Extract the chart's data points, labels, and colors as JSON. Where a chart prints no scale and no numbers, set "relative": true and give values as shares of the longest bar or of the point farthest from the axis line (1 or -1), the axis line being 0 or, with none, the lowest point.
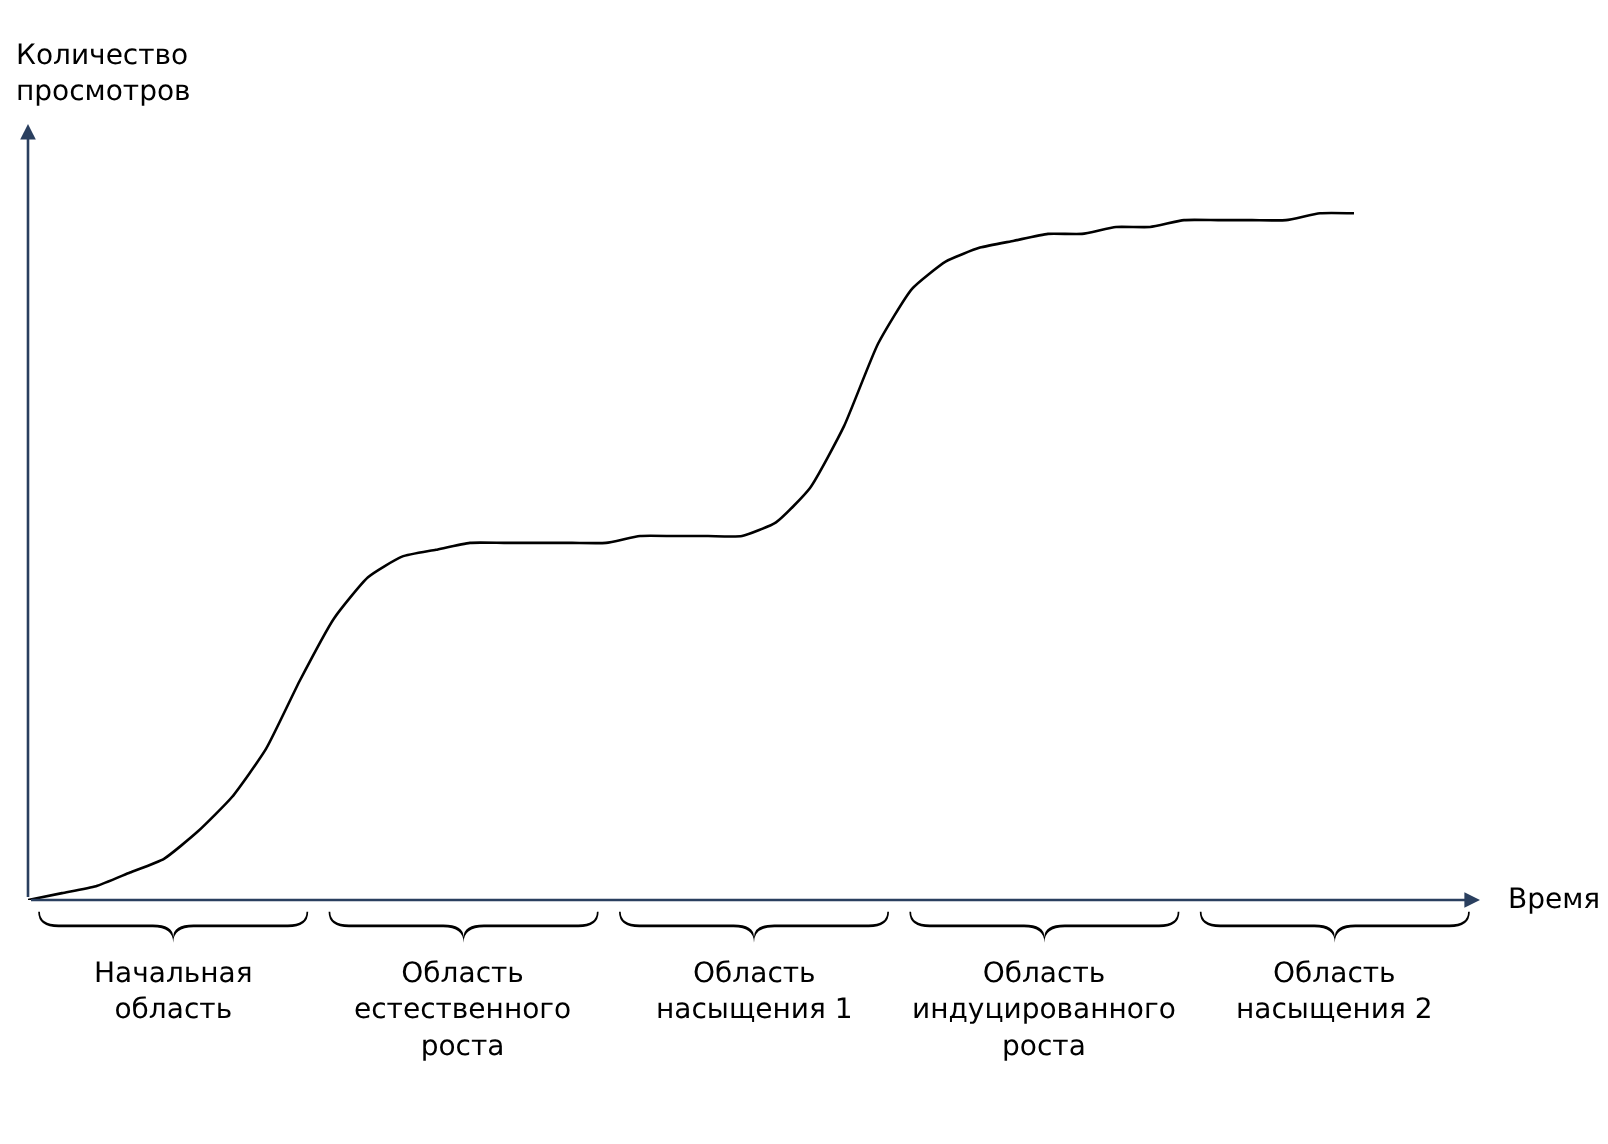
{
  "chart_data": {
    "type": "line",
    "relative": true,
    "xlabel": "Время",
    "ylabel": "Количество\nпросмотров",
    "color": "#000000",
    "categories": [
      null,
      null,
      null,
      null,
      null,
      null,
      null,
      null,
      null,
      null,
      null,
      null,
      null,
      null,
      null,
      null,
      null,
      null,
      null,
      null,
      null,
      null,
      null,
      null,
      null,
      null,
      null,
      null,
      null,
      null,
      null,
      null,
      null,
      null,
      null,
      null,
      null,
      null,
      null,
      null
    ],
    "values": [
      0,
      0.01,
      0.02,
      0.04,
      0.06,
      0.1,
      0.15,
      0.22,
      0.32,
      0.41,
      0.47,
      0.5,
      0.51,
      0.52,
      0.52,
      0.52,
      0.52,
      0.52,
      0.53,
      0.53,
      0.53,
      0.53,
      0.55,
      0.6,
      0.69,
      0.81,
      0.89,
      0.93,
      0.95,
      0.96,
      0.97,
      0.97,
      0.98,
      0.98,
      0.99,
      0.99,
      0.99,
      0.99,
      1.0,
      1.0
    ],
    "annotations": [
      "Начальная\nобласть",
      "Область\nестественного\nроста",
      "Область\nнасыщения 1",
      "Область\nиндуцированного\nроста",
      "Область\nнасыщения 2"
    ]
  }
}
